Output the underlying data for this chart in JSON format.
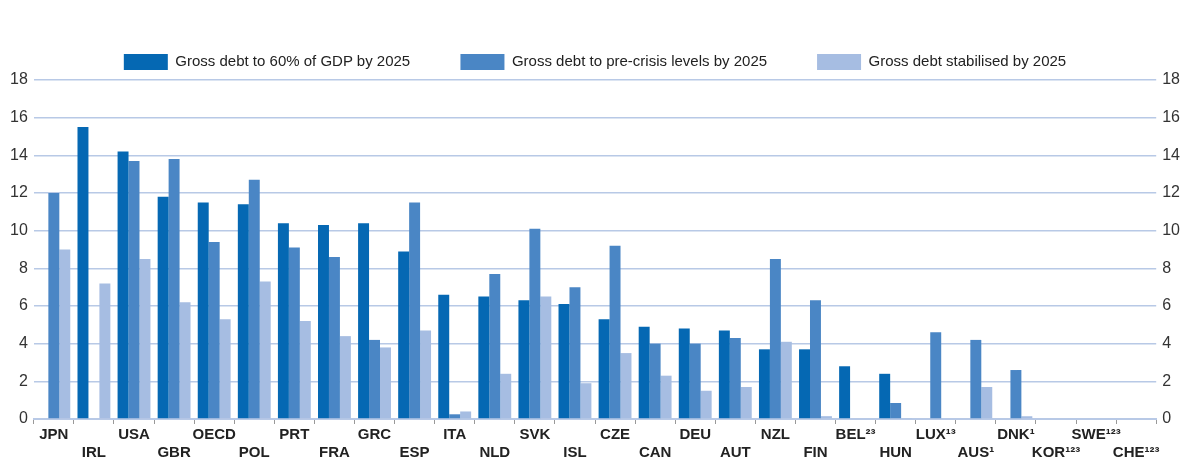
{
  "chart_data": {
    "type": "bar",
    "categories": [
      "JPN",
      "IRL",
      "USA",
      "GBR",
      "OECD",
      "POL",
      "PRT",
      "FRA",
      "GRC",
      "ESP",
      "ITA",
      "NLD",
      "SVK",
      "ISL",
      "CZE",
      "CAN",
      "DEU",
      "AUT",
      "NZL",
      "FIN",
      "BEL²³",
      "HUN",
      "LUX¹³",
      "AUS¹",
      "DNK¹",
      "KOR¹²³",
      "SWE¹²³",
      "CHE¹²³"
    ],
    "series": [
      {
        "name": "Gross debt to 60% of GDP by 2025",
        "color": "#0568b3",
        "values": [
          null,
          15.5,
          14.2,
          11.8,
          11.5,
          11.4,
          10.4,
          10.3,
          10.4,
          8.9,
          6.6,
          6.5,
          6.3,
          6.1,
          5.3,
          4.9,
          4.8,
          4.7,
          3.7,
          3.7,
          2.8,
          2.4,
          null,
          null,
          null,
          null,
          null,
          null
        ]
      },
      {
        "name": "Gross debt to pre-crisis levels by 2025",
        "color": "#4a86c5",
        "values": [
          12.0,
          null,
          13.7,
          13.8,
          9.4,
          12.7,
          9.1,
          8.6,
          4.2,
          11.5,
          0.25,
          7.7,
          10.1,
          7.0,
          9.2,
          4.0,
          4.0,
          4.3,
          8.5,
          6.3,
          null,
          0.85,
          4.6,
          4.2,
          2.6,
          null,
          null,
          null
        ]
      },
      {
        "name": "Gross debt stabilised by 2025",
        "color": "#a6bde2",
        "values": [
          9.0,
          7.2,
          8.5,
          6.2,
          5.3,
          7.3,
          5.2,
          4.4,
          3.8,
          4.7,
          0.4,
          2.4,
          6.5,
          1.9,
          3.5,
          2.3,
          1.5,
          1.7,
          4.1,
          0.15,
          null,
          0.05,
          null,
          1.7,
          0.15,
          null,
          null,
          null
        ]
      }
    ],
    "ylim": [
      0,
      18
    ],
    "yticks": [
      0,
      2,
      4,
      6,
      8,
      10,
      12,
      14,
      16,
      18
    ],
    "y2lim": [
      0,
      18
    ],
    "y2ticks": [
      0,
      2,
      4,
      6,
      8,
      10,
      12,
      14,
      16,
      18
    ],
    "grid": "y",
    "legend": "top"
  }
}
